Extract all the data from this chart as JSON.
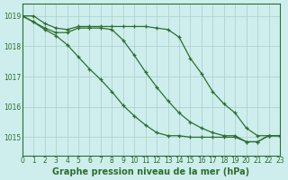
{
  "background_color": "#ceeeed",
  "grid_color": "#aacccc",
  "line_color": "#2d6e2d",
  "marker_color": "#2d6e2d",
  "xlabel": "Graphe pression niveau de la mer (hPa)",
  "xlim": [
    0,
    23
  ],
  "ylim": [
    1014.4,
    1019.4
  ],
  "yticks": [
    1015,
    1016,
    1017,
    1018,
    1019
  ],
  "xticks": [
    0,
    1,
    2,
    3,
    4,
    5,
    6,
    7,
    8,
    9,
    10,
    11,
    12,
    13,
    14,
    15,
    16,
    17,
    18,
    19,
    20,
    21,
    22,
    23
  ],
  "series1_x": [
    0,
    1,
    2,
    3,
    4,
    5,
    6,
    7,
    8,
    9,
    10,
    11,
    12,
    13,
    14,
    15,
    16,
    17,
    18,
    19,
    20,
    21,
    22,
    23
  ],
  "series1_y": [
    1019.0,
    1019.0,
    1018.75,
    1018.6,
    1018.55,
    1018.65,
    1018.65,
    1018.65,
    1018.65,
    1018.65,
    1018.65,
    1018.65,
    1018.6,
    1018.55,
    1018.3,
    1017.6,
    1017.1,
    1016.5,
    1016.1,
    1015.8,
    1015.3,
    1015.05,
    1015.05,
    1015.05
  ],
  "series2_x": [
    0,
    1,
    2,
    3,
    4,
    5,
    6,
    7,
    8,
    9,
    10,
    11,
    12,
    13,
    14,
    15,
    16,
    17,
    18,
    19,
    20,
    21,
    22,
    23
  ],
  "series2_y": [
    1019.0,
    1018.8,
    1018.6,
    1018.45,
    1018.45,
    1018.6,
    1018.6,
    1018.6,
    1018.55,
    1018.2,
    1017.7,
    1017.15,
    1016.65,
    1016.2,
    1015.8,
    1015.5,
    1015.3,
    1015.15,
    1015.05,
    1015.05,
    1014.85,
    1014.85,
    1015.05,
    1015.05
  ],
  "series3_x": [
    0,
    1,
    2,
    3,
    4,
    5,
    6,
    7,
    8,
    9,
    10,
    11,
    12,
    13,
    14,
    15,
    16,
    17,
    18,
    19,
    20,
    21,
    22,
    23
  ],
  "series3_y": [
    1019.0,
    1018.8,
    1018.55,
    1018.35,
    1018.05,
    1017.65,
    1017.25,
    1016.9,
    1016.5,
    1016.05,
    1015.7,
    1015.4,
    1015.15,
    1015.05,
    1015.05,
    1015.0,
    1015.0,
    1015.0,
    1015.0,
    1015.0,
    1014.85,
    1014.85,
    1015.05,
    1015.05
  ],
  "title_fontsize": 7.0,
  "tick_fontsize": 5.5,
  "title_color": "#2d6e2d",
  "tick_color": "#2d6e2d",
  "spine_color": "#2d6e2d"
}
